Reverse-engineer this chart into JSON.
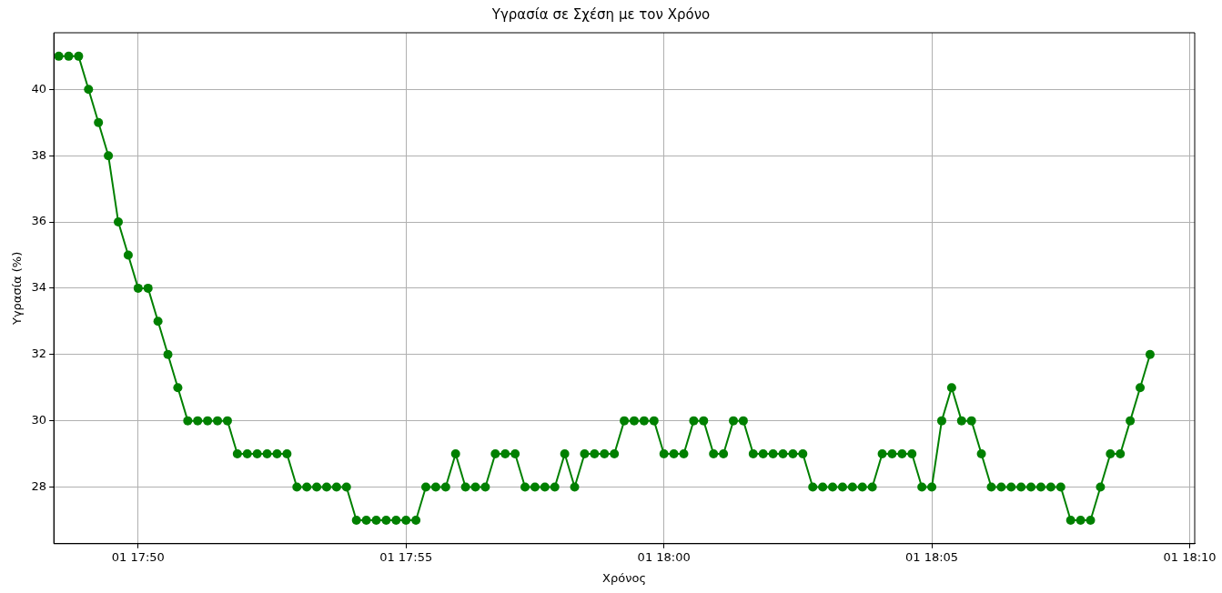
{
  "chart_data": {
    "type": "line",
    "title": "Υγρασία σε Σχέση με τον Χρόνο",
    "xlabel": "Χρόνος",
    "ylabel": "Υγρασία (%)",
    "categories": [
      null,
      null,
      null,
      null,
      null,
      null,
      null,
      null,
      "01 17:50",
      null,
      null,
      null,
      null,
      null,
      null,
      null,
      null,
      null,
      null,
      null,
      null,
      null,
      null,
      null,
      null,
      null,
      null,
      null,
      null,
      null,
      null,
      null,
      null,
      null,
      null,
      "01 17:55",
      null,
      null,
      null,
      null,
      null,
      null,
      null,
      null,
      null,
      null,
      null,
      null,
      null,
      null,
      null,
      null,
      null,
      null,
      null,
      null,
      null,
      null,
      null,
      null,
      null,
      "01 18:00",
      null,
      null,
      null,
      null,
      null,
      null,
      null,
      null,
      null,
      null,
      null,
      null,
      null,
      null,
      null,
      null,
      null,
      null,
      null,
      null,
      null,
      null,
      null,
      null,
      null,
      null,
      "01 18:05",
      null,
      null,
      null,
      null,
      null,
      null,
      null,
      null,
      null,
      null,
      null,
      null,
      null,
      null,
      null,
      null,
      null,
      null,
      null,
      null,
      null,
      null,
      null,
      null,
      null,
      "01 18:10"
    ],
    "series": [
      {
        "color": "#008000",
        "values": [
          41,
          41,
          41,
          40,
          39,
          38,
          36,
          35,
          34,
          34,
          33,
          32,
          31,
          30,
          30,
          30,
          30,
          30,
          29,
          29,
          29,
          29,
          29,
          29,
          28,
          28,
          28,
          28,
          28,
          28,
          27,
          27,
          27,
          27,
          27,
          27,
          27,
          28,
          28,
          28,
          29,
          28,
          28,
          28,
          29,
          29,
          29,
          28,
          28,
          28,
          28,
          29,
          28,
          29,
          29,
          29,
          29,
          30,
          30,
          30,
          30,
          29,
          29,
          29,
          30,
          30,
          29,
          29,
          30,
          30,
          29,
          29,
          29,
          29,
          29,
          29,
          28,
          28,
          28,
          28,
          28,
          28,
          28,
          29,
          29,
          29,
          29,
          28,
          28,
          30,
          31,
          30,
          30,
          29,
          28,
          28,
          28,
          28,
          28,
          28,
          28,
          28,
          27,
          27,
          27,
          28,
          29,
          29,
          30,
          31,
          32,
          null,
          null,
          null,
          null
        ]
      }
    ],
    "ylim": [
      26.29,
      41.71
    ],
    "yticks": [
      28,
      30,
      32,
      34,
      36,
      38,
      40
    ],
    "grid": true,
    "marker": "circle",
    "line_style": "solid"
  }
}
